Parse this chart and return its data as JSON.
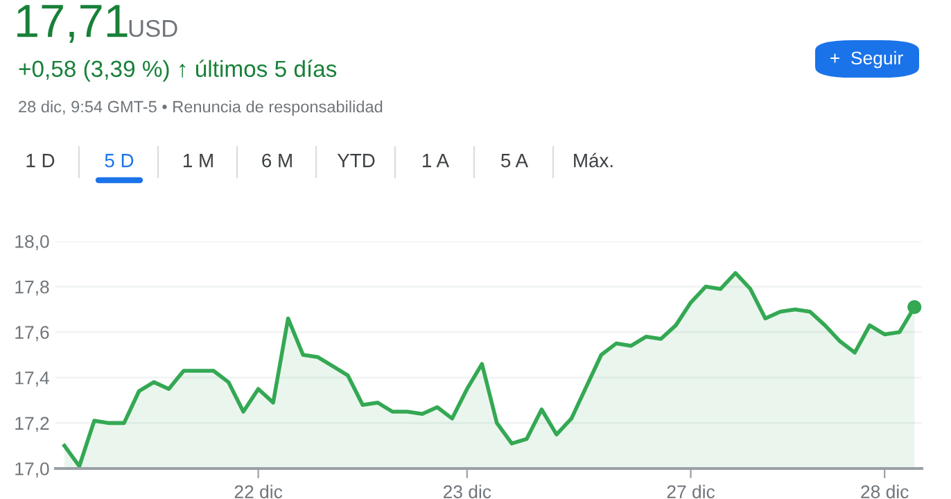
{
  "chart_data": {
    "type": "area",
    "title": "17,71",
    "subtitle": "+0,58 (3,39 %) ↑ últimos 5 días",
    "annotations": [
      "USD",
      "28 dic, 9:54 GMT-5 • Renuncia de responsabilidad",
      "+  Seguir",
      "1 D",
      "5 D",
      "1 M",
      "6 M",
      "YTD",
      "1 A",
      "5 A",
      "Máx."
    ],
    "categories": [
      null,
      null,
      null,
      null,
      null,
      null,
      null,
      null,
      null,
      null,
      null,
      null,
      null,
      "22 dic",
      null,
      null,
      null,
      null,
      null,
      null,
      null,
      null,
      null,
      null,
      null,
      null,
      null,
      "23 dic",
      null,
      null,
      null,
      null,
      null,
      null,
      null,
      null,
      null,
      null,
      null,
      null,
      null,
      null,
      "27 dic",
      null,
      null,
      null,
      null,
      null,
      null,
      null,
      null,
      null,
      null,
      null,
      null,
      "28 dic",
      null,
      null
    ],
    "series": [
      {
        "color": "#34a853",
        "values": [
          17.1,
          17.01,
          17.21,
          17.2,
          17.2,
          17.34,
          17.38,
          17.35,
          17.43,
          17.43,
          17.43,
          17.38,
          17.25,
          17.35,
          17.29,
          17.66,
          17.5,
          17.49,
          17.45,
          17.41,
          17.28,
          17.29,
          17.25,
          17.25,
          17.24,
          17.27,
          17.22,
          17.35,
          17.46,
          17.2,
          17.11,
          17.13,
          17.26,
          17.15,
          17.22,
          17.36,
          17.5,
          17.55,
          17.54,
          17.58,
          17.57,
          17.63,
          17.73,
          17.8,
          17.79,
          17.86,
          17.79,
          17.66,
          17.69,
          17.7,
          17.69,
          17.63,
          17.56,
          17.51,
          17.63,
          17.59,
          17.6,
          17.71
        ]
      },
      {
        "type": "scatter",
        "color": "#34a853",
        "values": [
          null,
          null,
          null,
          null,
          null,
          null,
          null,
          null,
          null,
          null,
          null,
          null,
          null,
          null,
          null,
          null,
          null,
          null,
          null,
          null,
          null,
          null,
          null,
          null,
          null,
          null,
          null,
          null,
          null,
          null,
          null,
          null,
          null,
          null,
          null,
          null,
          null,
          null,
          null,
          null,
          null,
          null,
          null,
          null,
          null,
          null,
          null,
          null,
          null,
          null,
          null,
          null,
          null,
          null,
          null,
          null,
          null,
          17.71
        ],
        "marker": "circle"
      }
    ],
    "ylim": [
      17.0,
      18.0
    ],
    "yticks": [
      {
        "value": 17.0,
        "label": "17,0"
      },
      {
        "value": 17.2,
        "label": "17,2"
      },
      {
        "value": 17.4,
        "label": "17,4"
      },
      {
        "value": 17.6,
        "label": "17,6"
      },
      {
        "value": 17.8,
        "label": "17,8"
      },
      {
        "value": 18.0,
        "label": "18,0"
      }
    ],
    "grid": "y",
    "legend": false,
    "line_style": "solid",
    "marker": "none"
  }
}
